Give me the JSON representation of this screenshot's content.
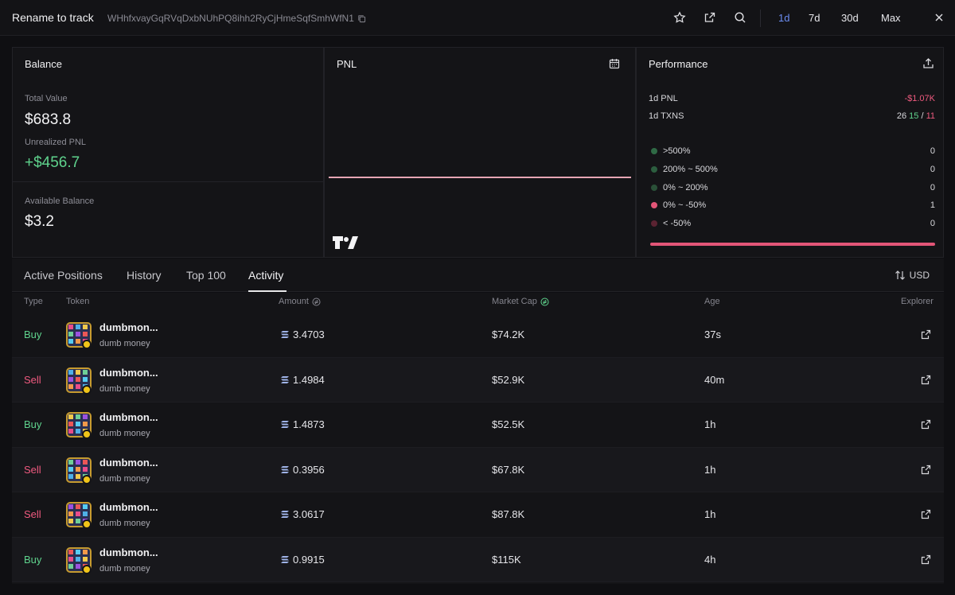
{
  "header": {
    "title": "Rename to track",
    "address": "WHhfxvayGqRVqDxbNUhPQ8ihh2RyCjHmeSqfSmhWfN1",
    "periods": [
      "1d",
      "7d",
      "30d",
      "Max"
    ],
    "active_period": "1d"
  },
  "balance": {
    "title": "Balance",
    "total_value_label": "Total Value",
    "total_value": "$683.8",
    "unrealized_label": "Unrealized PNL",
    "unrealized_value": "+$456.7",
    "available_label": "Available Balance",
    "available_value": "$3.2"
  },
  "pnl": {
    "title": "PNL"
  },
  "performance": {
    "title": "Performance",
    "pnl_label": "1d PNL",
    "pnl_value": "-$1.07K",
    "txns_label": "1d TXNS",
    "txns_total": "26",
    "txns_buy": "15",
    "txns_sep": "/",
    "txns_sell": "11",
    "buckets": [
      {
        "label": ">500%",
        "count": "0",
        "color": "#2f6a45"
      },
      {
        "label": "200% ~ 500%",
        "count": "0",
        "color": "#2c5e3f"
      },
      {
        "label": "0% ~ 200%",
        "count": "0",
        "color": "#2a5038"
      },
      {
        "label": "0% ~ -50%",
        "count": "1",
        "color": "#e25577"
      },
      {
        "label": "< -50%",
        "count": "0",
        "color": "#5b2332"
      }
    ]
  },
  "tabs": {
    "items": [
      "Active Positions",
      "History",
      "Top 100",
      "Activity"
    ],
    "active": "Activity",
    "currency": "USD"
  },
  "table": {
    "headers": {
      "type": "Type",
      "token": "Token",
      "amount": "Amount",
      "mcap": "Market Cap",
      "age": "Age",
      "explorer": "Explorer"
    },
    "rows": [
      {
        "type": "Buy",
        "name": "dumbmon...",
        "sub": "dumb money",
        "amount": "3.4703",
        "mcap": "$74.2K",
        "age": "37s"
      },
      {
        "type": "Sell",
        "name": "dumbmon...",
        "sub": "dumb money",
        "amount": "1.4984",
        "mcap": "$52.9K",
        "age": "40m"
      },
      {
        "type": "Buy",
        "name": "dumbmon...",
        "sub": "dumb money",
        "amount": "1.4873",
        "mcap": "$52.5K",
        "age": "1h"
      },
      {
        "type": "Sell",
        "name": "dumbmon...",
        "sub": "dumb money",
        "amount": "0.3956",
        "mcap": "$67.8K",
        "age": "1h"
      },
      {
        "type": "Sell",
        "name": "dumbmon...",
        "sub": "dumb money",
        "amount": "3.0617",
        "mcap": "$87.8K",
        "age": "1h"
      },
      {
        "type": "Buy",
        "name": "dumbmon...",
        "sub": "dumb money",
        "amount": "0.9915",
        "mcap": "$115K",
        "age": "4h"
      }
    ]
  },
  "colors": {
    "buy": "#5fd38d",
    "sell": "#ef5a7f",
    "accent": "#6b8cf0"
  }
}
